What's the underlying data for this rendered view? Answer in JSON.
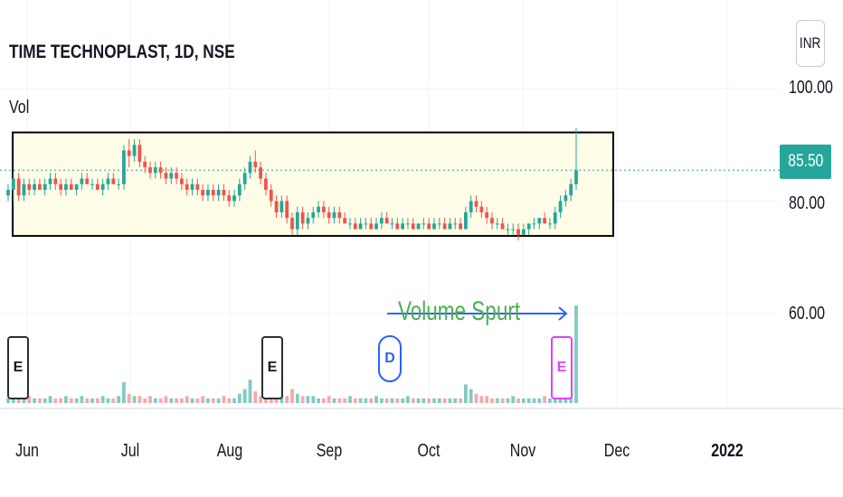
{
  "chart_data": {
    "type": "candlestick",
    "title": "TIME TECHNOPLAST, 1D, NSE",
    "currency": "INR",
    "volume_label": "Vol",
    "last_price": "85.50",
    "y_ticks": [
      "100.00",
      "80.00",
      "60.00"
    ],
    "x_ticks": [
      "Jun",
      "Jul",
      "Aug",
      "Sep",
      "Oct",
      "Nov",
      "Dec",
      "2022"
    ],
    "annotation": "Volume Spurt",
    "markers": [
      "E",
      "E",
      "D",
      "E"
    ],
    "colors": {
      "up": "#26a69a",
      "down": "#ef5350",
      "box_fill": "#fffde7",
      "arrow": "#2962ff",
      "annotation": "#4caf50"
    },
    "range_box": {
      "top": 92.2,
      "bottom": 73.8
    },
    "price_series": [
      [
        81,
        83,
        80,
        82
      ],
      [
        82,
        85,
        80,
        84
      ],
      [
        84,
        85,
        80,
        81
      ],
      [
        81,
        84,
        80,
        83
      ],
      [
        83,
        84,
        81,
        82
      ],
      [
        82,
        84,
        81,
        83
      ],
      [
        83,
        84,
        82,
        82
      ],
      [
        82,
        84,
        81,
        83
      ],
      [
        83,
        85,
        82,
        84
      ],
      [
        84,
        85,
        82,
        83
      ],
      [
        83,
        84,
        81,
        82
      ],
      [
        82,
        84,
        81,
        83
      ],
      [
        83,
        84,
        82,
        82
      ],
      [
        82,
        83,
        81,
        83
      ],
      [
        83,
        85,
        82,
        84
      ],
      [
        84,
        85,
        83,
        83
      ],
      [
        83,
        84,
        82,
        83
      ],
      [
        83,
        84,
        82,
        82
      ],
      [
        82,
        84,
        81,
        83
      ],
      [
        83,
        85,
        82,
        84
      ],
      [
        84,
        85,
        83,
        83
      ],
      [
        83,
        84,
        82,
        83
      ],
      [
        83,
        90,
        82,
        89
      ],
      [
        89,
        91,
        86,
        88
      ],
      [
        88,
        91,
        87,
        90
      ],
      [
        90,
        91,
        86,
        87
      ],
      [
        87,
        88,
        85,
        86
      ],
      [
        86,
        87,
        84,
        85
      ],
      [
        85,
        87,
        84,
        86
      ],
      [
        86,
        87,
        84,
        85
      ],
      [
        85,
        86,
        83,
        84
      ],
      [
        84,
        86,
        83,
        85
      ],
      [
        85,
        86,
        83,
        84
      ],
      [
        84,
        85,
        82,
        83
      ],
      [
        83,
        84,
        81,
        82
      ],
      [
        82,
        84,
        81,
        83
      ],
      [
        83,
        84,
        81,
        82
      ],
      [
        82,
        83,
        80,
        81
      ],
      [
        81,
        83,
        80,
        82
      ],
      [
        82,
        83,
        80,
        81
      ],
      [
        81,
        83,
        80,
        82
      ],
      [
        82,
        83,
        80,
        81
      ],
      [
        81,
        82,
        79,
        80
      ],
      [
        80,
        82,
        79,
        81
      ],
      [
        81,
        84,
        80,
        83
      ],
      [
        83,
        86,
        82,
        85
      ],
      [
        85,
        88,
        84,
        87
      ],
      [
        87,
        89,
        85,
        86
      ],
      [
        86,
        87,
        83,
        84
      ],
      [
        84,
        85,
        81,
        82
      ],
      [
        82,
        83,
        79,
        80
      ],
      [
        80,
        81,
        77,
        78
      ],
      [
        78,
        81,
        77,
        80
      ],
      [
        80,
        81,
        76,
        77
      ],
      [
        77,
        78,
        74,
        75
      ],
      [
        75,
        79,
        74,
        78
      ],
      [
        78,
        79,
        75,
        76
      ],
      [
        76,
        78,
        75,
        77
      ],
      [
        77,
        79,
        76,
        78
      ],
      [
        78,
        80,
        77,
        79
      ],
      [
        79,
        80,
        77,
        78
      ],
      [
        78,
        79,
        76,
        77
      ],
      [
        77,
        79,
        76,
        78
      ],
      [
        78,
        79,
        76,
        77
      ],
      [
        77,
        78,
        76,
        76
      ],
      [
        76,
        77,
        75,
        76
      ],
      [
        76,
        77,
        75,
        75
      ],
      [
        75,
        77,
        75,
        76
      ],
      [
        76,
        77,
        75,
        76
      ],
      [
        76,
        77,
        75,
        75
      ],
      [
        75,
        77,
        75,
        76
      ],
      [
        76,
        78,
        75,
        77
      ],
      [
        77,
        78,
        76,
        76
      ],
      [
        76,
        77,
        75,
        76
      ],
      [
        76,
        77,
        75,
        75
      ],
      [
        75,
        77,
        75,
        76
      ],
      [
        76,
        77,
        75,
        76
      ],
      [
        76,
        77,
        75,
        75
      ],
      [
        75,
        76,
        75,
        76
      ],
      [
        76,
        77,
        75,
        76
      ],
      [
        76,
        77,
        75,
        75
      ],
      [
        75,
        77,
        75,
        76
      ],
      [
        76,
        77,
        75,
        76
      ],
      [
        76,
        77,
        75,
        75
      ],
      [
        75,
        77,
        75,
        76
      ],
      [
        76,
        77,
        75,
        76
      ],
      [
        76,
        77,
        75,
        75
      ],
      [
        75,
        79,
        75,
        78
      ],
      [
        78,
        81,
        77,
        80
      ],
      [
        80,
        81,
        78,
        79
      ],
      [
        79,
        80,
        77,
        78
      ],
      [
        78,
        79,
        76,
        77
      ],
      [
        77,
        78,
        75,
        76
      ],
      [
        76,
        77,
        75,
        76
      ],
      [
        76,
        77,
        75,
        75
      ],
      [
        75,
        76,
        74,
        75
      ],
      [
        75,
        76,
        74,
        75
      ],
      [
        75,
        76,
        73,
        74
      ],
      [
        74,
        76,
        74,
        75
      ],
      [
        75,
        76,
        74,
        76
      ],
      [
        76,
        77,
        75,
        76
      ],
      [
        76,
        77,
        75,
        77
      ],
      [
        77,
        78,
        76,
        76
      ],
      [
        76,
        77,
        75,
        76
      ],
      [
        76,
        79,
        75,
        78
      ],
      [
        78,
        81,
        77,
        80
      ],
      [
        80,
        82,
        79,
        81
      ],
      [
        81,
        84,
        80,
        83
      ],
      [
        83,
        93,
        82,
        85.5
      ]
    ],
    "volume_series": [
      2,
      3,
      2,
      2,
      3,
      2,
      2,
      2,
      3,
      2,
      2,
      3,
      2,
      2,
      3,
      2,
      2,
      2,
      3,
      2,
      2,
      3,
      9,
      4,
      3,
      3,
      2,
      3,
      2,
      2,
      3,
      2,
      2,
      2,
      3,
      2,
      2,
      3,
      2,
      2,
      2,
      3,
      2,
      2,
      4,
      6,
      10,
      5,
      3,
      3,
      4,
      5,
      3,
      3,
      6,
      4,
      3,
      3,
      3,
      2,
      2,
      3,
      2,
      2,
      2,
      3,
      2,
      2,
      2,
      2,
      3,
      2,
      2,
      2,
      2,
      2,
      3,
      2,
      2,
      2,
      2,
      2,
      2,
      2,
      2,
      2,
      2,
      8,
      6,
      4,
      3,
      3,
      2,
      2,
      2,
      2,
      3,
      2,
      2,
      2,
      2,
      2,
      3,
      2,
      3,
      4,
      3,
      4,
      42
    ]
  }
}
